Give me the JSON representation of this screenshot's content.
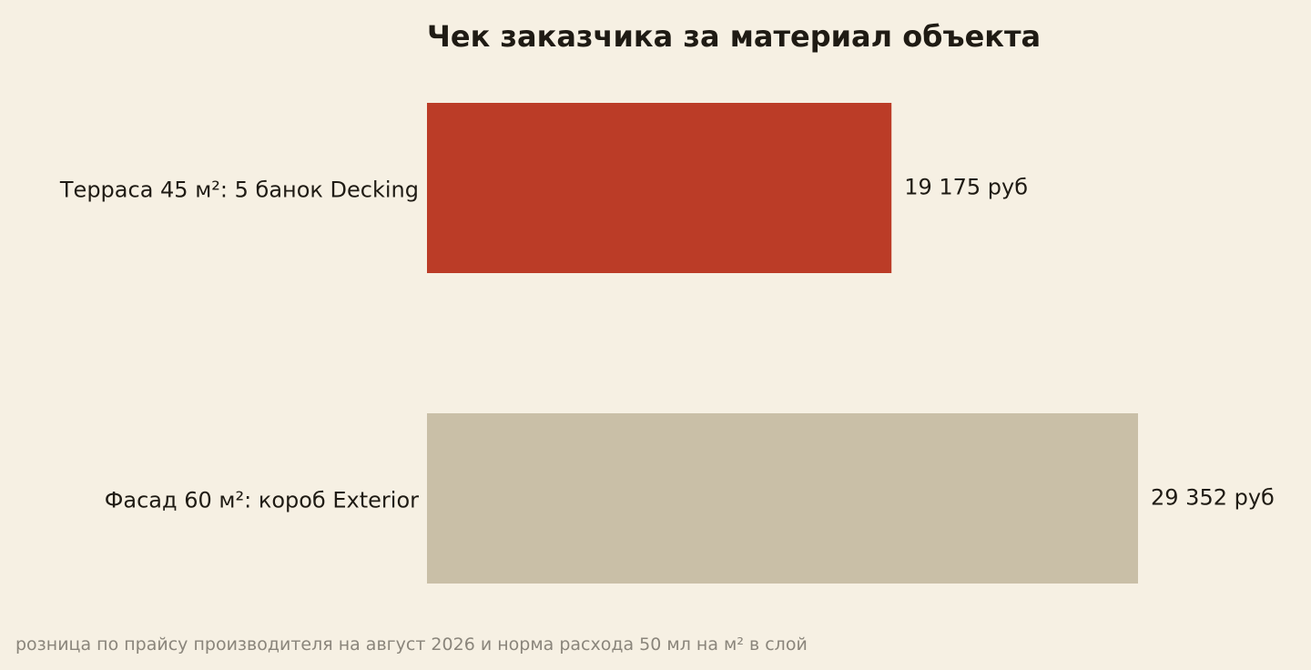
{
  "chart_data": {
    "type": "bar",
    "orientation": "horizontal",
    "title": "Чек заказчика за материал объекта",
    "categories": [
      "Терраса 45 м²: 5 банок Decking",
      "Фасад 60 м²: короб Exterior"
    ],
    "values": [
      19175,
      29352
    ],
    "value_labels": [
      "19 175 руб",
      "29 352 руб"
    ],
    "bar_colors": [
      "#bb3c27",
      "#c9bfa7"
    ],
    "xlim": [
      0,
      29352
    ],
    "xlabel": "",
    "ylabel": "",
    "grid": false,
    "footnote": "розница по прайсу производителя на август 2026 и норма расхода 50 мл на м² в слой"
  },
  "colors": {
    "background": "#f6f0e3",
    "text": "#1f1b14",
    "footnote": "#8a857b"
  }
}
